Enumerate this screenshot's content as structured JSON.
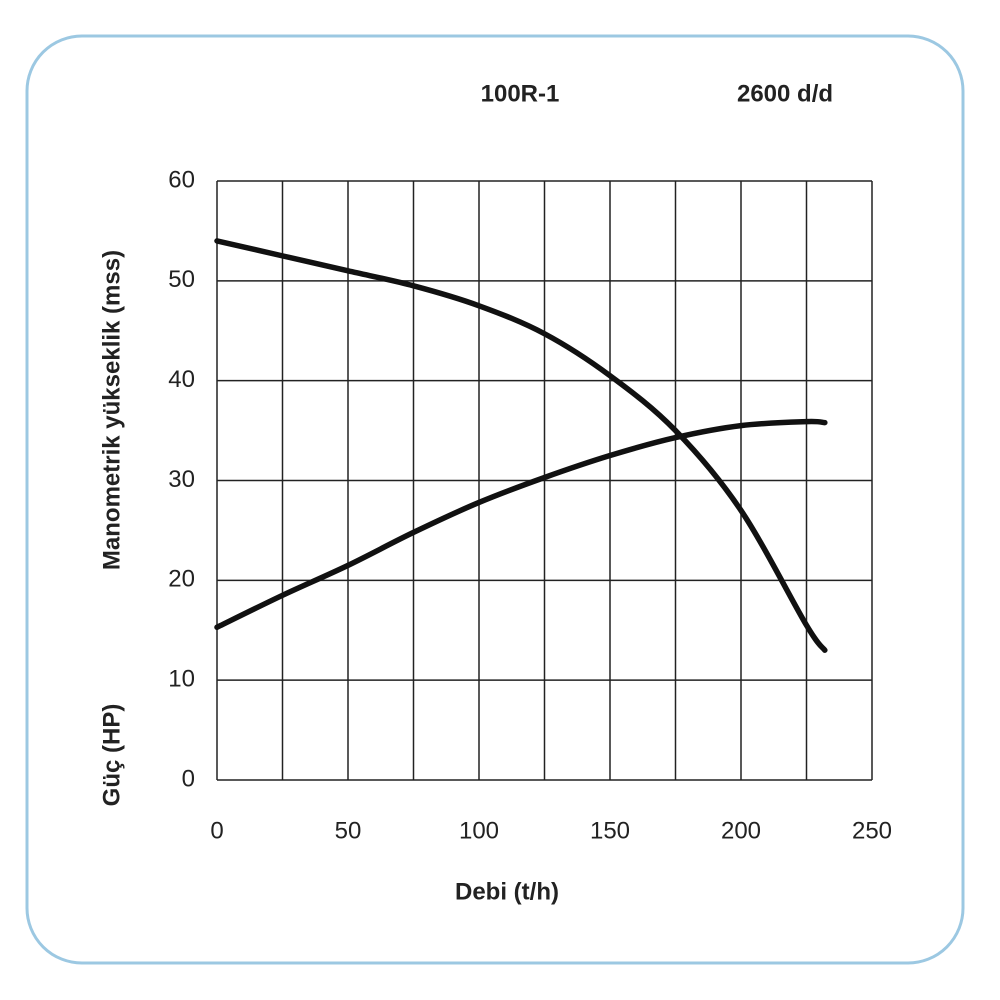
{
  "chart_data": {
    "type": "line",
    "title": "100R-1",
    "subtitle": "2600 d/d",
    "x_label": "Debi (t/h)",
    "y_label": "Manometrik yükseklik (mss)",
    "y_label_2": "Güç (HP)",
    "x": [
      0,
      25,
      50,
      75,
      100,
      125,
      150,
      175,
      200,
      225,
      232
    ],
    "series": [
      {
        "color": "#111111",
        "values": [
          54,
          52.5,
          51,
          49.5,
          47.5,
          44.7,
          40.5,
          35,
          27,
          15.5,
          13
        ]
      },
      {
        "color": "#111111",
        "values": [
          15.3,
          18.5,
          21.5,
          24.8,
          27.8,
          30.3,
          32.5,
          34.3,
          35.5,
          35.9,
          35.8
        ]
      }
    ],
    "xlim": [
      0,
      250
    ],
    "xticks": [
      0,
      50,
      100,
      150,
      200,
      250
    ],
    "xminorticks": [
      25,
      75,
      125,
      175,
      225
    ],
    "ylim": [
      0,
      60
    ],
    "yticks": [
      0,
      10,
      20,
      30,
      40,
      50,
      60
    ],
    "grid": true
  }
}
